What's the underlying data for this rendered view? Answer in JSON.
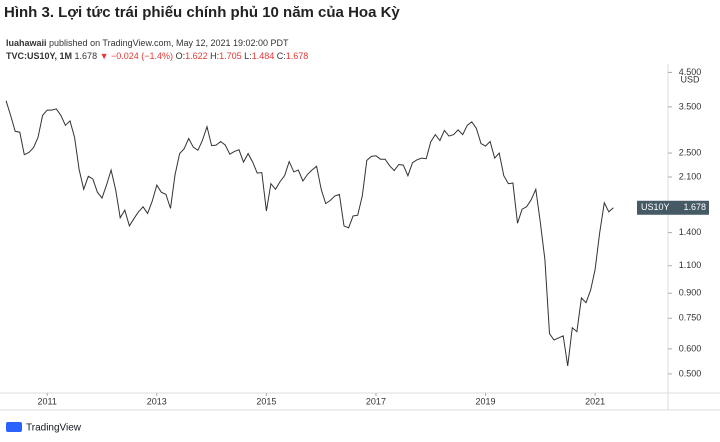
{
  "header": {
    "title": "Hình 3. Lợi tức trái phiếu chính phủ 10 năm của Hoa Kỳ",
    "author": "luahawaii",
    "published": "published on TradingView.com, May 12, 2021 19:02:00 PDT",
    "symbol": "TVC:US10Y, 1M",
    "price": "1.678",
    "change": "▼ −0.024 (−1.4%)",
    "open_label": "O:",
    "open": "1.622",
    "high_label": "H:",
    "high": "1.705",
    "low_label": "L:",
    "low": "1.484",
    "close_label": "C:",
    "close": "1.678"
  },
  "chart_data": {
    "type": "line",
    "color": "#333333",
    "log_scale": true,
    "grid": false,
    "unit": "USD",
    "x": [
      2010.25,
      2010.333,
      2010.417,
      2010.5,
      2010.583,
      2010.667,
      2010.75,
      2010.833,
      2010.917,
      2011,
      2011.083,
      2011.167,
      2011.25,
      2011.333,
      2011.417,
      2011.5,
      2011.583,
      2011.667,
      2011.75,
      2011.833,
      2011.917,
      2012,
      2012.083,
      2012.167,
      2012.25,
      2012.333,
      2012.417,
      2012.5,
      2012.583,
      2012.667,
      2012.75,
      2012.833,
      2012.917,
      2013,
      2013.083,
      2013.167,
      2013.25,
      2013.333,
      2013.417,
      2013.5,
      2013.583,
      2013.667,
      2013.75,
      2013.833,
      2013.917,
      2014,
      2014.083,
      2014.167,
      2014.25,
      2014.333,
      2014.417,
      2014.5,
      2014.583,
      2014.667,
      2014.75,
      2014.833,
      2014.917,
      2015,
      2015.083,
      2015.167,
      2015.25,
      2015.333,
      2015.417,
      2015.5,
      2015.583,
      2015.667,
      2015.75,
      2015.833,
      2015.917,
      2016,
      2016.083,
      2016.167,
      2016.25,
      2016.333,
      2016.417,
      2016.5,
      2016.583,
      2016.667,
      2016.75,
      2016.833,
      2016.917,
      2017,
      2017.083,
      2017.167,
      2017.25,
      2017.333,
      2017.417,
      2017.5,
      2017.583,
      2017.667,
      2017.75,
      2017.833,
      2017.917,
      2018,
      2018.083,
      2018.167,
      2018.25,
      2018.333,
      2018.417,
      2018.5,
      2018.583,
      2018.667,
      2018.75,
      2018.833,
      2018.917,
      2019,
      2019.083,
      2019.167,
      2019.25,
      2019.333,
      2019.417,
      2019.5,
      2019.583,
      2019.667,
      2019.75,
      2019.833,
      2019.917,
      2020,
      2020.083,
      2020.167,
      2020.25,
      2020.333,
      2020.417,
      2020.5,
      2020.583,
      2020.667,
      2020.75,
      2020.833,
      2020.917,
      2021,
      2021.083,
      2021.167,
      2021.25,
      2021.333
    ],
    "values": [
      3.66,
      3.29,
      2.93,
      2.91,
      2.47,
      2.51,
      2.6,
      2.8,
      3.29,
      3.42,
      3.42,
      3.45,
      3.29,
      3.06,
      3.16,
      2.8,
      2.22,
      1.92,
      2.11,
      2.07,
      1.88,
      1.8,
      1.98,
      2.21,
      1.91,
      1.56,
      1.65,
      1.47,
      1.55,
      1.63,
      1.69,
      1.61,
      1.76,
      1.98,
      1.88,
      1.85,
      1.67,
      2.13,
      2.49,
      2.58,
      2.78,
      2.61,
      2.55,
      2.74,
      3.03,
      2.64,
      2.65,
      2.72,
      2.65,
      2.48,
      2.53,
      2.56,
      2.34,
      2.49,
      2.34,
      2.16,
      2.17,
      1.64,
      2,
      1.92,
      2.03,
      2.12,
      2.35,
      2.18,
      2.21,
      2.04,
      2.14,
      2.21,
      2.27,
      1.92,
      1.73,
      1.77,
      1.83,
      1.85,
      1.47,
      1.45,
      1.58,
      1.59,
      1.83,
      2.37,
      2.44,
      2.45,
      2.39,
      2.39,
      2.28,
      2.2,
      2.3,
      2.29,
      2.12,
      2.33,
      2.38,
      2.41,
      2.4,
      2.71,
      2.86,
      2.74,
      2.95,
      2.83,
      2.86,
      2.96,
      2.86,
      3.06,
      3.14,
      2.99,
      2.68,
      2.63,
      2.72,
      2.41,
      2.5,
      2.12,
      2,
      2.01,
      1.5,
      1.66,
      1.69,
      1.78,
      1.92,
      1.51,
      1.15,
      0.67,
      0.64,
      0.65,
      0.66,
      0.53,
      0.7,
      0.68,
      0.87,
      0.84,
      0.92,
      1.07,
      1.4,
      1.74,
      1.63,
      1.678
    ],
    "xlim": [
      2010.23,
      2022.33
    ],
    "xticks": [
      2011,
      2013,
      2015,
      2017,
      2019,
      2021
    ],
    "ylim": [
      0.435,
      4.75
    ],
    "yticks": [
      {
        "value": 4.5,
        "label": "4.500"
      },
      {
        "value": 3.5,
        "label": "3.500"
      },
      {
        "value": 2.5,
        "label": "2.500"
      },
      {
        "value": 2.1,
        "label": "2.100"
      },
      {
        "value": 1.4,
        "label": "1.400"
      },
      {
        "value": 1.1,
        "label": "1.100"
      },
      {
        "value": 0.9,
        "label": "0.900"
      },
      {
        "value": 0.75,
        "label": "0.750"
      },
      {
        "value": 0.6,
        "label": "0.600"
      },
      {
        "value": 0.5,
        "label": "0.500"
      }
    ],
    "last_label": {
      "symbol": "US10Y",
      "value": 1.678
    }
  },
  "footer": {
    "brand": "TradingView"
  }
}
